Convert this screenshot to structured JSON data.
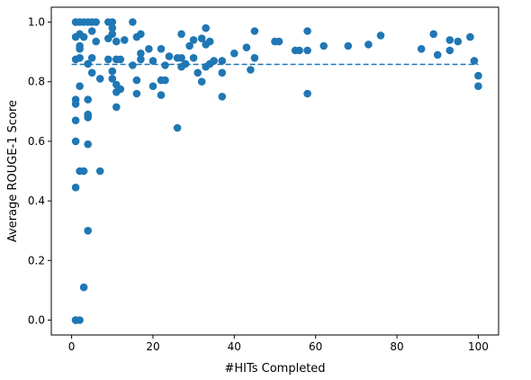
{
  "chart_data": {
    "type": "scatter",
    "title": "",
    "xlabel": "#HITs Completed",
    "ylabel": "Average ROUGE-1 Score",
    "xlim": [
      -5,
      105
    ],
    "ylim": [
      -0.05,
      1.05
    ],
    "xticks": [
      0,
      20,
      40,
      60,
      80,
      100
    ],
    "yticks": [
      0.0,
      0.2,
      0.4,
      0.6,
      0.8,
      1.0
    ],
    "xtick_labels": [
      "0",
      "20",
      "40",
      "60",
      "80",
      "100"
    ],
    "ytick_labels": [
      "0.0",
      "0.2",
      "0.4",
      "0.6",
      "0.8",
      "1.0"
    ],
    "grid": false,
    "colors": {
      "point": "#1f77b4",
      "mean_line": "#1f77b4"
    },
    "mean_line": {
      "y": 0.858,
      "x_range": [
        0,
        100
      ],
      "style": "dashed"
    },
    "points": [
      [
        1,
        1.0
      ],
      [
        1,
        1.0
      ],
      [
        1,
        0.95
      ],
      [
        1,
        0.875
      ],
      [
        1,
        0.74
      ],
      [
        1,
        0.725
      ],
      [
        1,
        0.67
      ],
      [
        1,
        0.6
      ],
      [
        1,
        0.445
      ],
      [
        1,
        0.0
      ],
      [
        1,
        0.0
      ],
      [
        1,
        0.0
      ],
      [
        2,
        1.0
      ],
      [
        2,
        0.96
      ],
      [
        2,
        0.92
      ],
      [
        2,
        0.91
      ],
      [
        2,
        0.88
      ],
      [
        2,
        0.785
      ],
      [
        2,
        0.5
      ],
      [
        2,
        0.0
      ],
      [
        3,
        1.0
      ],
      [
        3,
        0.95
      ],
      [
        3,
        0.5
      ],
      [
        3,
        0.11
      ],
      [
        4,
        1.0
      ],
      [
        4,
        0.86
      ],
      [
        4,
        0.74
      ],
      [
        4,
        0.69
      ],
      [
        4,
        0.68
      ],
      [
        4,
        0.59
      ],
      [
        4,
        0.3
      ],
      [
        5,
        1.0
      ],
      [
        5,
        0.97
      ],
      [
        5,
        0.88
      ],
      [
        5,
        0.83
      ],
      [
        6,
        1.0
      ],
      [
        6,
        0.935
      ],
      [
        7,
        0.81
      ],
      [
        7,
        0.5
      ],
      [
        9,
        1.0
      ],
      [
        9,
        0.945
      ],
      [
        9,
        0.875
      ],
      [
        10,
        1.0
      ],
      [
        10,
        0.98
      ],
      [
        10,
        0.96
      ],
      [
        10,
        0.835
      ],
      [
        10,
        0.81
      ],
      [
        11,
        0.935
      ],
      [
        11,
        0.875
      ],
      [
        11,
        0.79
      ],
      [
        11,
        0.765
      ],
      [
        11,
        0.715
      ],
      [
        12,
        0.875
      ],
      [
        12,
        0.775
      ],
      [
        13,
        0.94
      ],
      [
        15,
        1.0
      ],
      [
        15,
        0.855
      ],
      [
        16,
        0.95
      ],
      [
        16,
        0.805
      ],
      [
        16,
        0.76
      ],
      [
        17,
        0.96
      ],
      [
        17,
        0.895
      ],
      [
        17,
        0.875
      ],
      [
        19,
        0.91
      ],
      [
        20,
        0.87
      ],
      [
        20,
        0.785
      ],
      [
        22,
        0.91
      ],
      [
        22,
        0.805
      ],
      [
        22,
        0.755
      ],
      [
        23,
        0.855
      ],
      [
        23,
        0.805
      ],
      [
        24,
        0.885
      ],
      [
        26,
        0.88
      ],
      [
        26,
        0.645
      ],
      [
        27,
        0.96
      ],
      [
        27,
        0.88
      ],
      [
        27,
        0.85
      ],
      [
        28,
        0.86
      ],
      [
        29,
        0.92
      ],
      [
        30,
        0.94
      ],
      [
        30,
        0.88
      ],
      [
        31,
        0.83
      ],
      [
        32,
        0.945
      ],
      [
        32,
        0.8
      ],
      [
        33,
        0.98
      ],
      [
        33,
        0.925
      ],
      [
        33,
        0.85
      ],
      [
        34,
        0.935
      ],
      [
        34,
        0.86
      ],
      [
        35,
        0.87
      ],
      [
        37,
        0.87
      ],
      [
        37,
        0.83
      ],
      [
        37,
        0.75
      ],
      [
        40,
        0.895
      ],
      [
        43,
        0.915
      ],
      [
        44,
        0.84
      ],
      [
        45,
        0.97
      ],
      [
        45,
        0.88
      ],
      [
        50,
        0.935
      ],
      [
        51,
        0.935
      ],
      [
        55,
        0.905
      ],
      [
        56,
        0.905
      ],
      [
        58,
        0.97
      ],
      [
        58,
        0.905
      ],
      [
        58,
        0.76
      ],
      [
        62,
        0.92
      ],
      [
        68,
        0.92
      ],
      [
        73,
        0.925
      ],
      [
        76,
        0.955
      ],
      [
        86,
        0.91
      ],
      [
        89,
        0.96
      ],
      [
        90,
        0.89
      ],
      [
        93,
        0.94
      ],
      [
        93,
        0.905
      ],
      [
        95,
        0.935
      ],
      [
        98,
        0.95
      ],
      [
        99,
        0.87
      ],
      [
        100,
        0.82
      ],
      [
        100,
        0.785
      ]
    ]
  }
}
